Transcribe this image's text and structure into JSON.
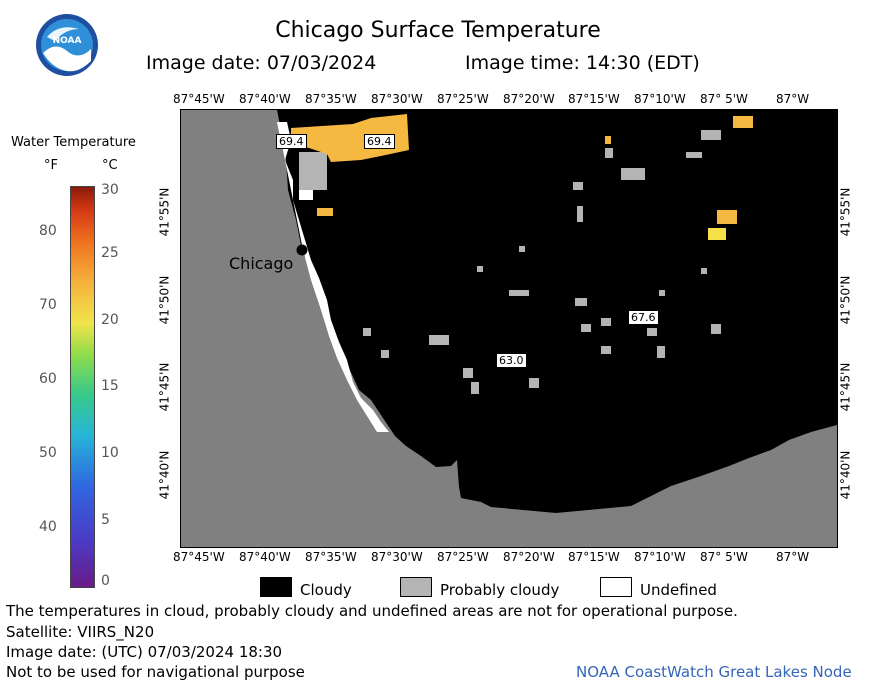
{
  "header": {
    "title": "Chicago Surface Temperature",
    "image_date": "Image date: 07/03/2024",
    "image_time": "Image time: 14:30 (EDT)"
  },
  "colorbar": {
    "title": "Water Temperature",
    "unit_f": "°F",
    "unit_c": "°C",
    "f_ticks": [
      "80",
      "70",
      "60",
      "50",
      "40"
    ],
    "c_ticks": [
      "30",
      "25",
      "20",
      "15",
      "10",
      "5",
      "0"
    ]
  },
  "map": {
    "lon_labels": [
      "87°45'W",
      "87°40'W",
      "87°35'W",
      "87°30'W",
      "87°25'W",
      "87°20'W",
      "87°15'W",
      "87°10'W",
      "87° 5'W",
      "87°W"
    ],
    "lat_labels": [
      "41°55'N",
      "41°50'N",
      "41°45'N",
      "41°40'N"
    ],
    "city_label": "Chicago",
    "temp_labels": [
      "69.4",
      "69.4",
      "67.6",
      "63.0"
    ],
    "colors": {
      "land": "#808080",
      "cloudy": "#000000",
      "probably_cloudy": "#b4b4b4",
      "undefined": "#ffffff",
      "warm_water": "#f5b942",
      "yellow": "#f5e04a"
    }
  },
  "legend": {
    "items": [
      "Cloudy",
      "Probably cloudy",
      "Undefined"
    ]
  },
  "footer": {
    "disclaimer": "The temperatures in cloud, probably cloudy and undefined areas are not for operational purpose.",
    "satellite": "Satellite: VIIRS_N20",
    "utc_date": "Image date: (UTC) 07/03/2024  18:30",
    "nav_warning": "Not to be used for navigational purpose",
    "credit": "NOAA CoastWatch Great Lakes Node"
  }
}
